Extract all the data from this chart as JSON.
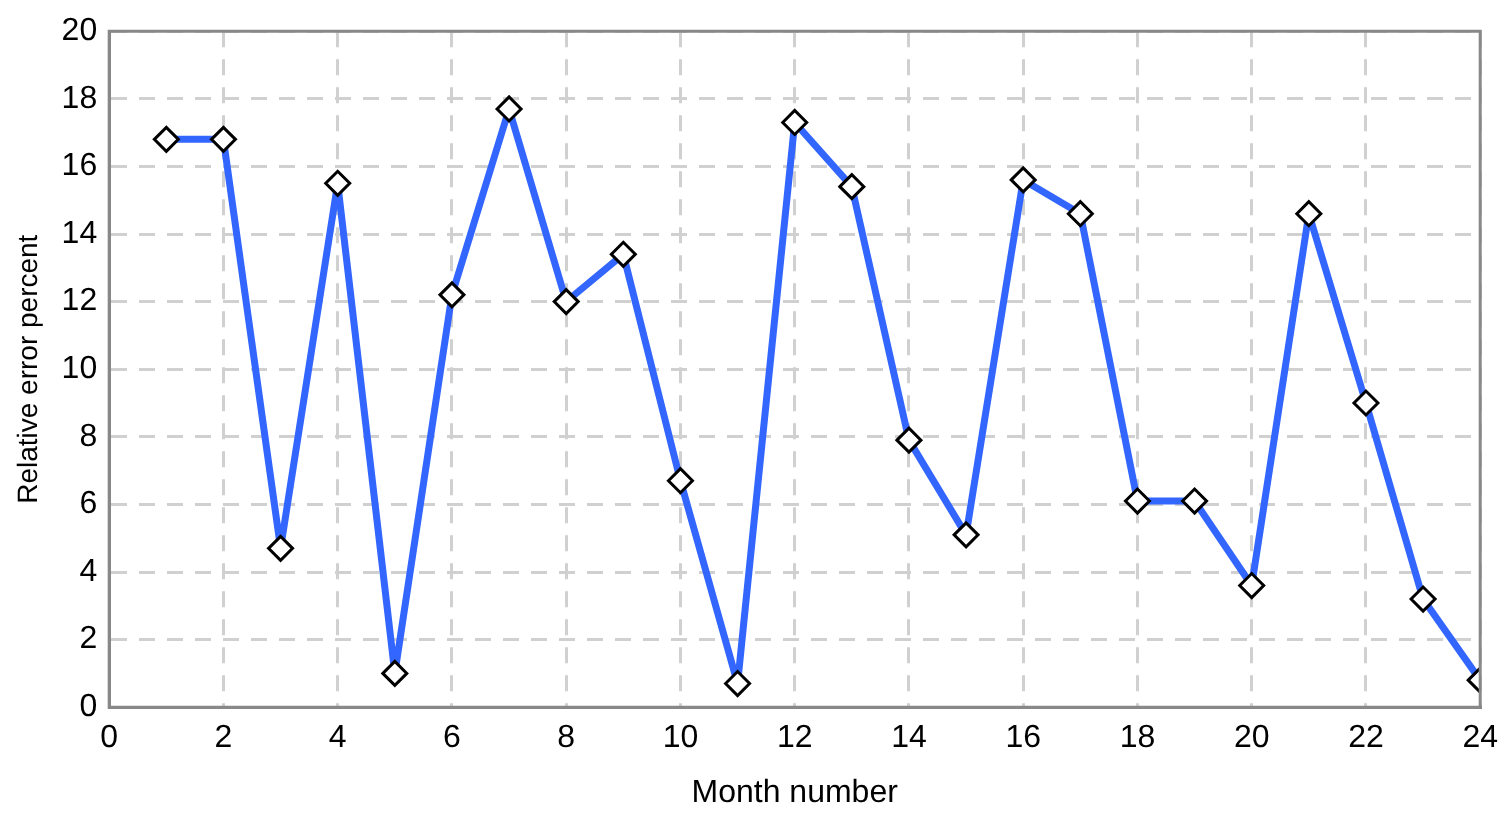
{
  "chart_data": {
    "type": "line",
    "xlabel": "Month number",
    "ylabel": "Relative error percent",
    "x": [
      1,
      2,
      3,
      4,
      5,
      6,
      7,
      8,
      9,
      10,
      11,
      12,
      13,
      14,
      15,
      16,
      17,
      18,
      19,
      20,
      21,
      22,
      23,
      24
    ],
    "series": [
      {
        "color": "#3366ff",
        "values": [
          16.8,
          16.8,
          4.7,
          15.5,
          1.0,
          12.2,
          17.7,
          12.0,
          13.4,
          6.7,
          0.7,
          17.3,
          15.4,
          7.9,
          5.1,
          15.6,
          14.6,
          6.1,
          6.1,
          3.6,
          14.6,
          9.0,
          3.2,
          0.8
        ]
      }
    ],
    "xlim": [
      0,
      24
    ],
    "xticks": [
      0,
      2,
      4,
      6,
      8,
      10,
      12,
      14,
      16,
      18,
      20,
      22,
      24
    ],
    "ylim": [
      0,
      20
    ],
    "yticks": [
      0,
      2,
      4,
      6,
      8,
      10,
      12,
      14,
      16,
      18,
      20
    ],
    "grid": true,
    "marker": "diamond",
    "line_style": "solid",
    "legend": false
  }
}
